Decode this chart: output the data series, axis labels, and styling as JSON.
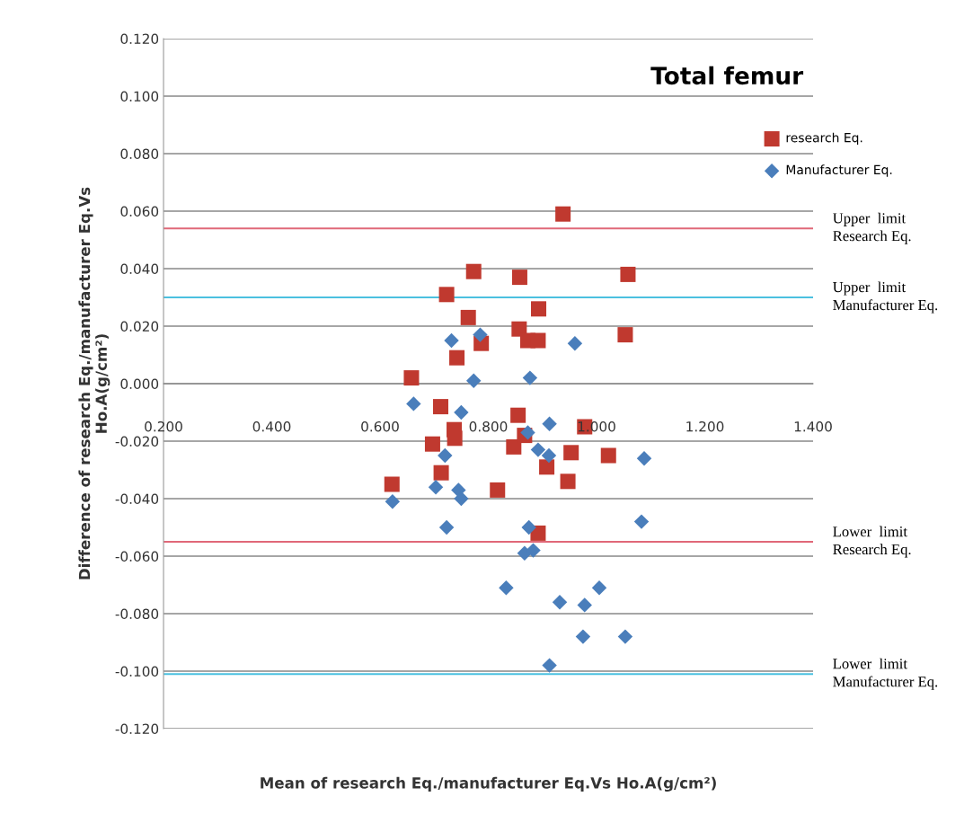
{
  "chart_data": {
    "type": "scatter",
    "title": "Total femur",
    "xlabel": "Mean of research Eq./manufacturer Eq.Vs Ho.A(g/cm²)",
    "ylabel": "Difference of research Eq./manufacturer Eq.Vs\nHo.A(g/cm²)",
    "series": [
      {
        "name": "research Eq.",
        "color": "#c0392f",
        "marker": "square",
        "x": [
          0.658,
          0.712,
          0.697,
          0.622,
          0.713,
          0.737,
          0.738,
          0.817,
          0.855,
          0.847,
          0.867,
          0.908,
          0.892,
          0.953,
          0.947,
          1.022,
          0.978,
          0.938,
          0.773,
          0.858,
          1.058,
          0.723,
          0.763,
          0.893,
          0.857,
          0.873,
          0.892,
          0.787,
          1.053,
          0.742
        ],
        "values": [
          0.002,
          -0.008,
          -0.021,
          -0.035,
          -0.031,
          -0.016,
          -0.019,
          -0.037,
          -0.011,
          -0.022,
          -0.018,
          -0.029,
          -0.052,
          -0.024,
          -0.034,
          -0.025,
          -0.015,
          0.059,
          0.039,
          0.037,
          0.038,
          0.031,
          0.023,
          0.026,
          0.019,
          0.015,
          0.015,
          0.014,
          0.017,
          0.009
        ]
      },
      {
        "name": "Manufacturer Eq.",
        "color": "#4a7ebb",
        "marker": "diamond",
        "x": [
          0.732,
          0.785,
          0.96,
          0.773,
          0.877,
          0.662,
          0.75,
          0.913,
          0.873,
          0.72,
          0.892,
          0.912,
          1.088,
          0.623,
          0.703,
          0.745,
          0.75,
          0.723,
          0.875,
          1.083,
          0.867,
          0.883,
          0.833,
          1.005,
          0.932,
          0.978,
          0.975,
          1.053,
          0.913
        ],
        "values": [
          0.015,
          0.017,
          0.014,
          0.001,
          0.002,
          -0.007,
          -0.01,
          -0.014,
          -0.017,
          -0.025,
          -0.023,
          -0.025,
          -0.026,
          -0.041,
          -0.036,
          -0.037,
          -0.04,
          -0.05,
          -0.05,
          -0.048,
          -0.059,
          -0.058,
          -0.071,
          -0.071,
          -0.076,
          -0.077,
          -0.088,
          -0.088,
          -0.098
        ]
      }
    ],
    "ref_lines": [
      {
        "axis": "y",
        "value": 0.054,
        "label": "Upper  limit\nResearch Eq.",
        "color": "#e06878"
      },
      {
        "axis": "y",
        "value": 0.03,
        "label": "Upper  limit\nManufacturer Eq.",
        "color": "#4bc0e0"
      },
      {
        "axis": "y",
        "value": -0.055,
        "label": "Lower  limit\nResearch Eq.",
        "color": "#e06878"
      },
      {
        "axis": "y",
        "value": -0.101,
        "label": "Lower  limit\nManufacturer Eq.",
        "color": "#4bc0e0"
      }
    ],
    "xlim": [
      0.2,
      1.4
    ],
    "xticks": [
      {
        "value": 0.2,
        "label": "0.200"
      },
      {
        "value": 0.4,
        "label": "0.400"
      },
      {
        "value": 0.6,
        "label": "0.600"
      },
      {
        "value": 0.8,
        "label": "0.800"
      },
      {
        "value": 1.0,
        "label": "1.000"
      },
      {
        "value": 1.2,
        "label": "1.200"
      },
      {
        "value": 1.4,
        "label": "1.400"
      }
    ],
    "ylim": [
      -0.12,
      0.12
    ],
    "yticks": [
      {
        "value": -0.12,
        "label": "-0.120"
      },
      {
        "value": -0.1,
        "label": "-0.100"
      },
      {
        "value": -0.08,
        "label": "-0.080"
      },
      {
        "value": -0.06,
        "label": "-0.060"
      },
      {
        "value": -0.04,
        "label": "-0.040"
      },
      {
        "value": -0.02,
        "label": "-0.020"
      },
      {
        "value": 0.0,
        "label": "0.000"
      },
      {
        "value": 0.02,
        "label": "0.020"
      },
      {
        "value": 0.04,
        "label": "0.040"
      },
      {
        "value": 0.06,
        "label": "0.060"
      },
      {
        "value": 0.08,
        "label": "0.080"
      },
      {
        "value": 0.1,
        "label": "0.100"
      },
      {
        "value": 0.12,
        "label": "0.120"
      }
    ],
    "grid": "y",
    "legend": "top right"
  }
}
